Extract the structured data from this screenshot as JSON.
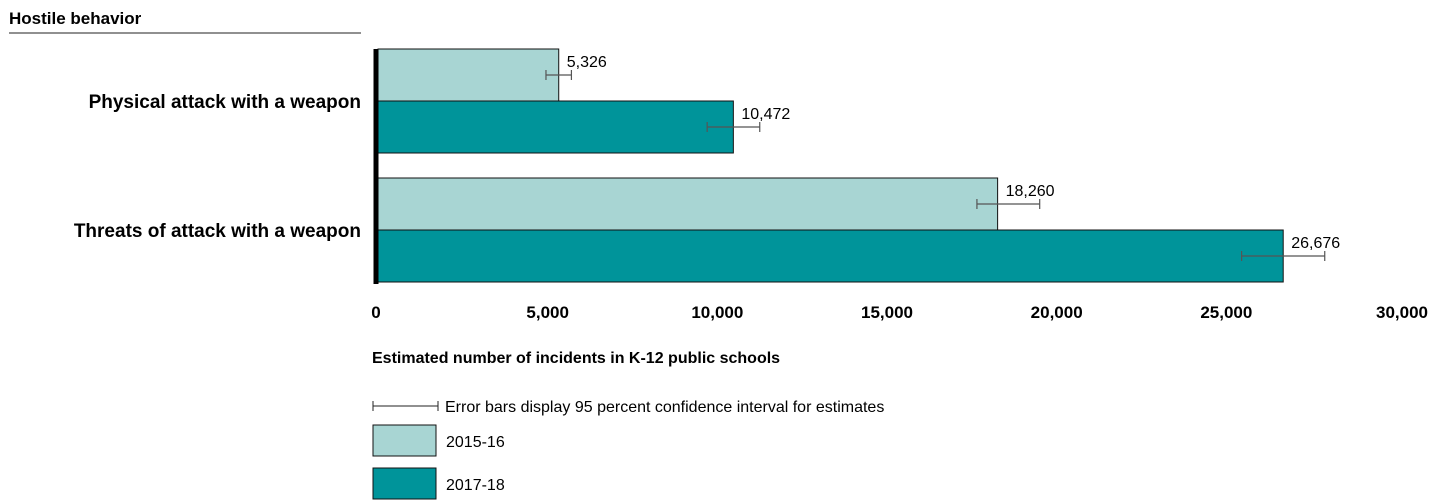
{
  "section_title": "Hostile behavior",
  "chart_data": {
    "type": "bar",
    "orientation": "horizontal",
    "categories": [
      "Physical attack with a weapon",
      "Threats of attack with a weapon"
    ],
    "series": [
      {
        "name": "2015-16",
        "color": "#a8d5d3",
        "values": [
          5326,
          18260
        ],
        "value_labels": [
          "5,326",
          "18,260"
        ],
        "ci_low": [
          4950,
          17650
        ],
        "ci_high": [
          5700,
          19500
        ]
      },
      {
        "name": "2017-18",
        "color": "#00949a",
        "values": [
          10472,
          26676
        ],
        "value_labels": [
          "10,472",
          "26,676"
        ],
        "ci_low": [
          9700,
          25450
        ],
        "ci_high": [
          11250,
          27900
        ]
      }
    ],
    "xlabel": "Estimated number of incidents in K-12 public schools",
    "xlim": [
      0,
      30000
    ],
    "xticks": [
      0,
      5000,
      10000,
      15000,
      20000,
      25000,
      30000
    ],
    "xtick_labels": [
      "0",
      "5,000",
      "10,000",
      "15,000",
      "20,000",
      "25,000",
      "30,000"
    ],
    "grid": false,
    "legend_position": "bottom-left",
    "error_bar_note": "Error bars display 95 percent confidence interval for estimates"
  }
}
